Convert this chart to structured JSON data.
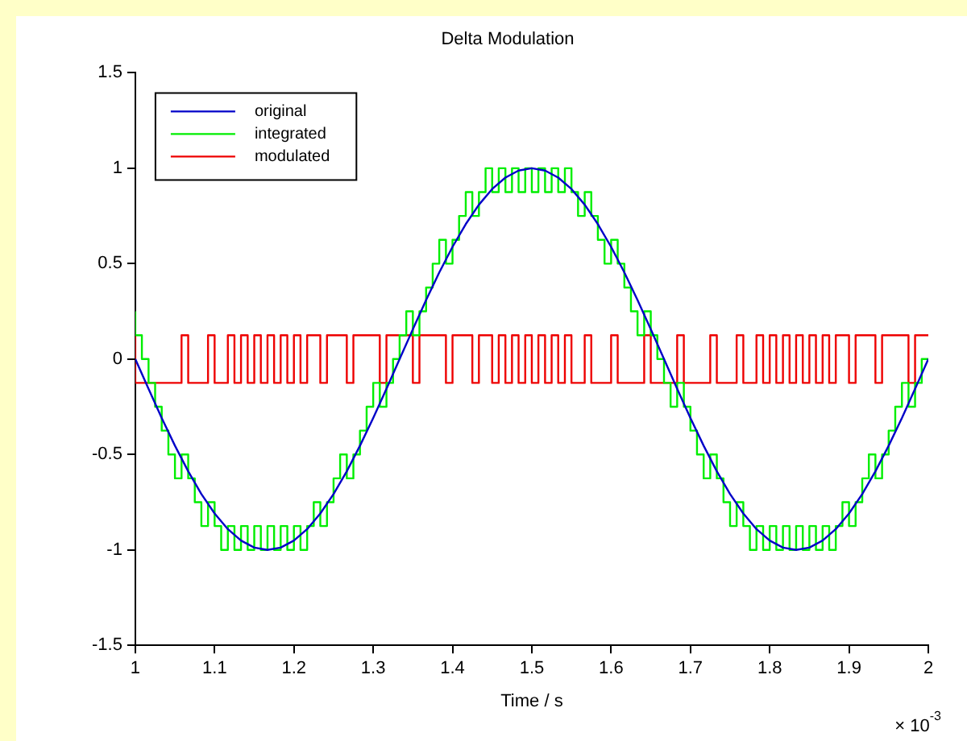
{
  "chart_data": {
    "type": "line",
    "title": "Delta Modulation",
    "xlabel": "Time / s",
    "annotations": [
      "× 10$^{-3}$"
    ],
    "x": [
      1,
      1.0083,
      1.0167,
      1.025,
      1.0333,
      1.0417,
      1.05,
      1.0583,
      1.0667,
      1.075,
      1.0833,
      1.0917,
      1.1,
      1.1083,
      1.1167,
      1.125,
      1.1333,
      1.1417,
      1.15,
      1.1583,
      1.1667,
      1.175,
      1.1833,
      1.1917,
      1.2,
      1.2083,
      1.2167,
      1.225,
      1.2333,
      1.2417,
      1.25,
      1.2583,
      1.2667,
      1.275,
      1.2833,
      1.2917,
      1.3,
      1.3083,
      1.3167,
      1.325,
      1.3333,
      1.3417,
      1.35,
      1.3583,
      1.3667,
      1.375,
      1.3833,
      1.3917,
      1.4,
      1.4083,
      1.4167,
      1.425,
      1.4333,
      1.4417,
      1.45,
      1.4583,
      1.4667,
      1.475,
      1.4833,
      1.4917,
      1.5,
      1.5083,
      1.5167,
      1.525,
      1.5333,
      1.5417,
      1.55,
      1.5583,
      1.5667,
      1.575,
      1.5833,
      1.5917,
      1.6,
      1.6083,
      1.6167,
      1.625,
      1.6333,
      1.6417,
      1.65,
      1.6583,
      1.6667,
      1.675,
      1.6833,
      1.6917,
      1.7,
      1.7083,
      1.7167,
      1.725,
      1.7333,
      1.7417,
      1.75,
      1.7583,
      1.7667,
      1.775,
      1.7833,
      1.7917,
      1.8,
      1.8083,
      1.8167,
      1.825,
      1.8333,
      1.8417,
      1.85,
      1.8583,
      1.8667,
      1.875,
      1.8833,
      1.8917,
      1.9,
      1.9083,
      1.9167,
      1.925,
      1.9333,
      1.9417,
      1.95,
      1.9583,
      1.9667,
      1.975,
      1.9833,
      1.9917,
      2
    ],
    "series": [
      {
        "name": "original",
        "color": "#0000c8",
        "x": [
          1,
          1.0167,
          1.0333,
          1.05,
          1.0667,
          1.0833,
          1.1,
          1.1167,
          1.1333,
          1.15,
          1.1667,
          1.1833,
          1.2,
          1.2167,
          1.2333,
          1.25,
          1.2667,
          1.2833,
          1.3,
          1.3167,
          1.3333,
          1.35,
          1.3667,
          1.3833,
          1.4,
          1.4167,
          1.4333,
          1.45,
          1.4667,
          1.4833,
          1.5,
          1.5167,
          1.5333,
          1.55,
          1.5667,
          1.5833,
          1.6,
          1.6167,
          1.6333,
          1.65,
          1.6667,
          1.6833,
          1.7,
          1.7167,
          1.7333,
          1.75,
          1.7667,
          1.7833,
          1.8,
          1.8167,
          1.8333,
          1.85,
          1.8667,
          1.8833,
          1.9,
          1.9167,
          1.9333,
          1.95,
          1.9667,
          1.9833,
          2
        ],
        "values": [
          0,
          -0.156,
          -0.309,
          -0.454,
          -0.588,
          -0.707,
          -0.809,
          -0.891,
          -0.951,
          -0.988,
          -1,
          -0.988,
          -0.951,
          -0.891,
          -0.809,
          -0.707,
          -0.588,
          -0.454,
          -0.309,
          -0.156,
          0,
          0.156,
          0.309,
          0.454,
          0.588,
          0.707,
          0.809,
          0.891,
          0.951,
          0.988,
          1,
          0.988,
          0.951,
          0.891,
          0.809,
          0.707,
          0.588,
          0.454,
          0.309,
          0.156,
          0,
          -0.156,
          -0.309,
          -0.454,
          -0.588,
          -0.707,
          -0.809,
          -0.891,
          -0.951,
          -0.988,
          -1,
          -0.988,
          -0.951,
          -0.891,
          -0.809,
          -0.707,
          -0.588,
          -0.454,
          -0.309,
          -0.156,
          0
        ]
      },
      {
        "name": "integrated",
        "type": "step",
        "color": "#00ee00",
        "values": [
          0.25,
          0.125,
          0,
          -0.125,
          -0.25,
          -0.375,
          -0.5,
          -0.625,
          -0.5,
          -0.625,
          -0.75,
          -0.875,
          -0.75,
          -0.875,
          -1,
          -0.875,
          -1,
          -0.875,
          -1,
          -0.875,
          -1,
          -0.875,
          -1,
          -0.875,
          -1,
          -0.875,
          -1,
          -0.875,
          -0.75,
          -0.875,
          -0.75,
          -0.625,
          -0.5,
          -0.625,
          -0.5,
          -0.375,
          -0.25,
          -0.125,
          -0.25,
          -0.125,
          0,
          0.125,
          0.25,
          0.125,
          0.25,
          0.375,
          0.5,
          0.625,
          0.5,
          0.625,
          0.75,
          0.875,
          0.75,
          0.875,
          1,
          0.875,
          1,
          0.875,
          1,
          0.875,
          1,
          0.875,
          1,
          0.875,
          1,
          0.875,
          1,
          0.875,
          0.75,
          0.875,
          0.75,
          0.625,
          0.5,
          0.625,
          0.5,
          0.375,
          0.25,
          0.125,
          0.25,
          0.125,
          0,
          -0.125,
          -0.25,
          -0.125,
          -0.25,
          -0.375,
          -0.5,
          -0.625,
          -0.5,
          -0.625,
          -0.75,
          -0.875,
          -0.75,
          -0.875,
          -1,
          -0.875,
          -1,
          -0.875,
          -1,
          -0.875,
          -1,
          -0.875,
          -1,
          -0.875,
          -1,
          -0.875,
          -1,
          -0.875,
          -0.75,
          -0.875,
          -0.75,
          -0.625,
          -0.5,
          -0.625,
          -0.5,
          -0.375,
          -0.25,
          -0.125,
          -0.25,
          -0.125,
          0
        ]
      },
      {
        "name": "modulated",
        "type": "step",
        "color": "#ee0000",
        "values": [
          0.125,
          -0.125,
          -0.125,
          -0.125,
          -0.125,
          -0.125,
          -0.125,
          -0.125,
          0.125,
          -0.125,
          -0.125,
          -0.125,
          0.125,
          -0.125,
          -0.125,
          0.125,
          -0.125,
          0.125,
          -0.125,
          0.125,
          -0.125,
          0.125,
          -0.125,
          0.125,
          -0.125,
          0.125,
          -0.125,
          0.125,
          0.125,
          -0.125,
          0.125,
          0.125,
          0.125,
          -0.125,
          0.125,
          0.125,
          0.125,
          0.125,
          -0.125,
          0.125,
          0.125,
          0.125,
          0.125,
          -0.125,
          0.125,
          0.125,
          0.125,
          0.125,
          -0.125,
          0.125,
          0.125,
          0.125,
          -0.125,
          0.125,
          0.125,
          -0.125,
          0.125,
          -0.125,
          0.125,
          -0.125,
          0.125,
          -0.125,
          0.125,
          -0.125,
          0.125,
          -0.125,
          0.125,
          -0.125,
          -0.125,
          0.125,
          -0.125,
          -0.125,
          -0.125,
          0.125,
          -0.125,
          -0.125,
          -0.125,
          -0.125,
          0.125,
          -0.125,
          -0.125,
          -0.125,
          -0.125,
          0.125,
          -0.125,
          -0.125,
          -0.125,
          -0.125,
          0.125,
          -0.125,
          -0.125,
          -0.125,
          0.125,
          -0.125,
          -0.125,
          0.125,
          -0.125,
          0.125,
          -0.125,
          0.125,
          -0.125,
          0.125,
          -0.125,
          0.125,
          -0.125,
          0.125,
          -0.125,
          0.125,
          0.125,
          -0.125,
          0.125,
          0.125,
          0.125,
          -0.125,
          0.125,
          0.125,
          0.125,
          0.125,
          -0.125,
          0.125,
          0.125
        ]
      }
    ],
    "xlim": [
      1,
      2
    ],
    "xticks": [
      1,
      1.1,
      1.2,
      1.3,
      1.4,
      1.5,
      1.6,
      1.7,
      1.8,
      1.9,
      2
    ],
    "ylim": [
      -1.5,
      1.5
    ],
    "yticks": [
      -1.5,
      -1,
      -0.5,
      0,
      0.5,
      1,
      1.5
    ],
    "grid": false,
    "legend": "top left"
  }
}
